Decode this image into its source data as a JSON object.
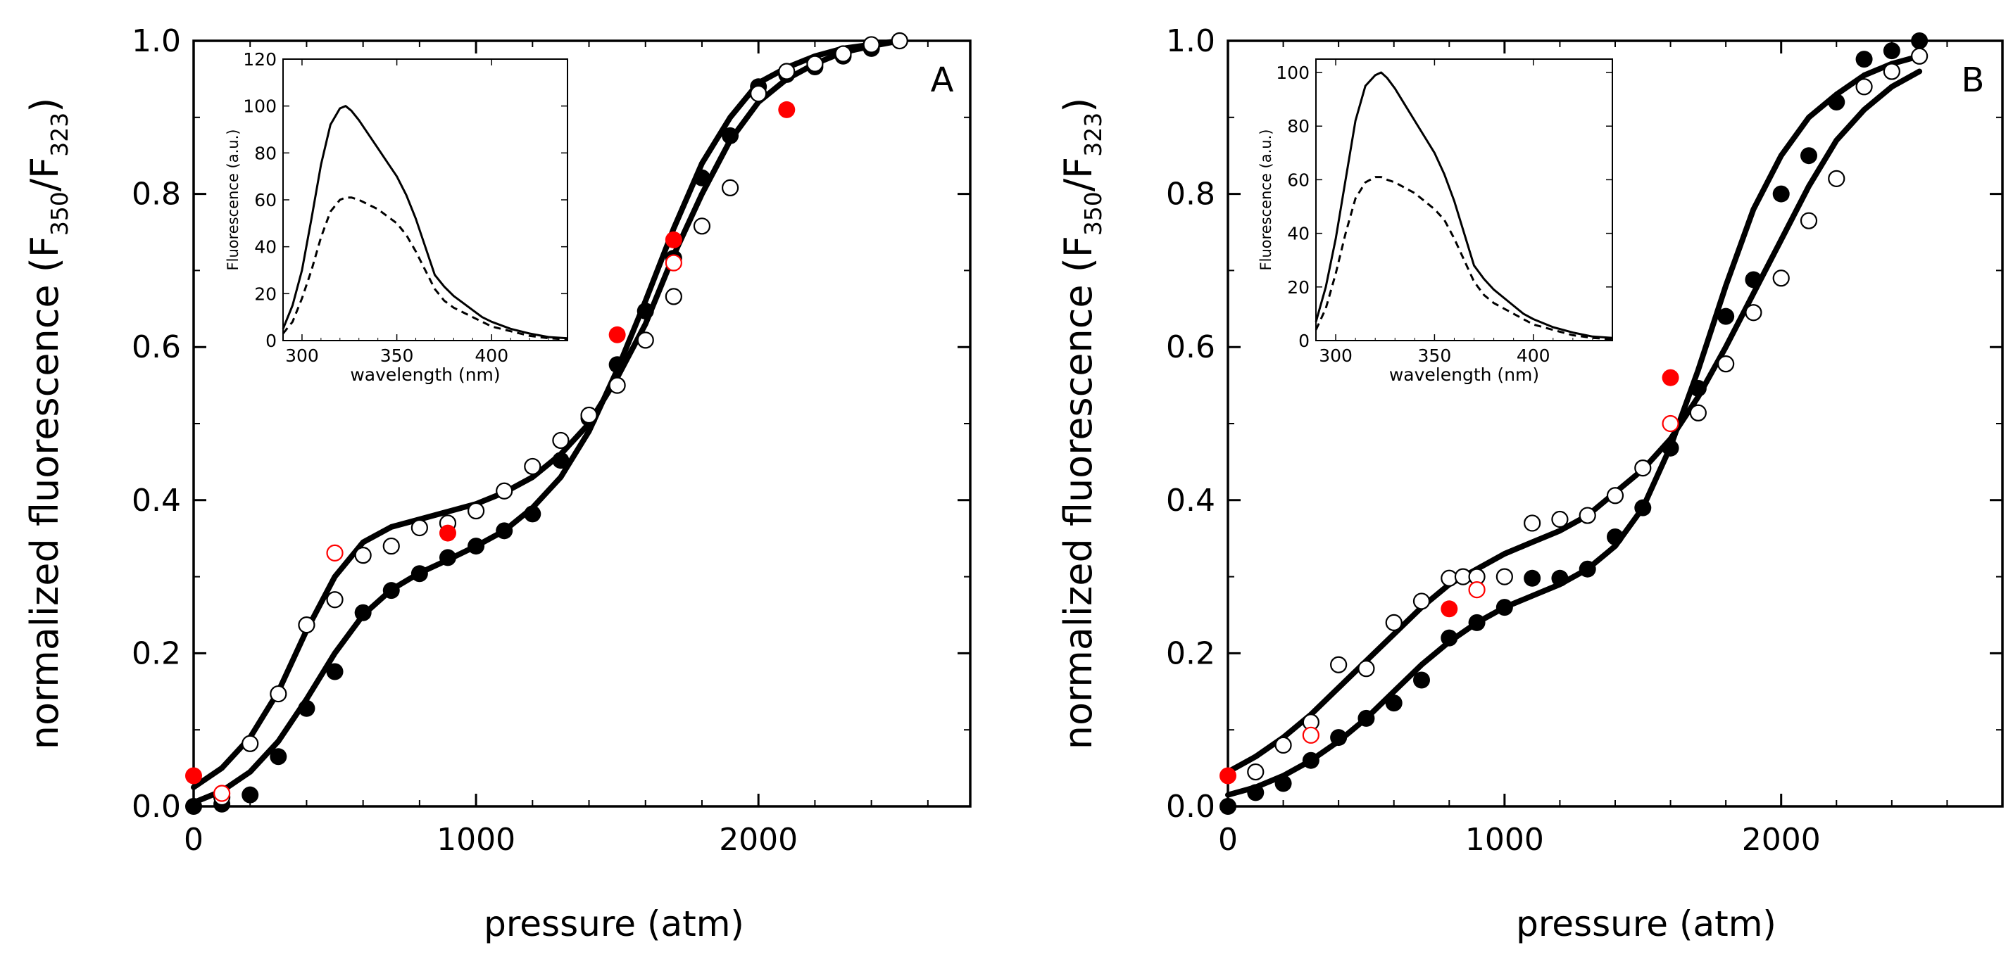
{
  "chart_data": [
    {
      "type": "scatter",
      "panel": "A",
      "xlabel": "pressure (atm)",
      "ylabel": {
        "main": "normalized fluorescence (F",
        "sub1": "350",
        "mid": "/F",
        "sub2": "323",
        "end": ")"
      },
      "xlim": [
        0,
        2750
      ],
      "ylim": [
        0,
        1.0
      ],
      "xticks": [
        0,
        1000,
        2000
      ],
      "xticklabels": [
        "0",
        "1000",
        "2000"
      ],
      "yticks": [
        0,
        0.2,
        0.4,
        0.6,
        0.8,
        1.0
      ],
      "yticklabels": [
        "0.0",
        "0.2",
        "0.4",
        "0.6",
        "0.8",
        "1.0"
      ],
      "series": [
        {
          "name": "filled black",
          "style": "filled",
          "color": "#000000",
          "x": [
            0,
            100,
            200,
            300,
            400,
            500,
            600,
            700,
            800,
            900,
            1000,
            1100,
            1200,
            1300,
            1400,
            1500,
            1600,
            1700,
            1800,
            1900,
            2000,
            2100,
            2200,
            2300,
            2400,
            2500
          ],
          "y": [
            0.0,
            0.003,
            0.015,
            0.065,
            0.128,
            0.176,
            0.253,
            0.282,
            0.304,
            0.325,
            0.34,
            0.36,
            0.382,
            0.452,
            0.507,
            0.577,
            0.647,
            0.716,
            0.821,
            0.876,
            0.94,
            0.956,
            0.966,
            0.98,
            0.99,
            1.0
          ]
        },
        {
          "name": "open black",
          "style": "open",
          "color": "#000000",
          "x": [
            100,
            200,
            300,
            400,
            500,
            600,
            700,
            800,
            900,
            1000,
            1100,
            1200,
            1300,
            1400,
            1500,
            1600,
            1700,
            1800,
            1900,
            2000,
            2100,
            2200,
            2300,
            2400,
            2500
          ],
          "y": [
            0.012,
            0.082,
            0.147,
            0.237,
            0.27,
            0.328,
            0.34,
            0.364,
            0.37,
            0.386,
            0.412,
            0.444,
            0.478,
            0.511,
            0.55,
            0.609,
            0.666,
            0.758,
            0.808,
            0.931,
            0.96,
            0.97,
            0.983,
            0.995,
            1.0
          ]
        },
        {
          "name": "filled red",
          "style": "filled",
          "color": "#ff0000",
          "x": [
            0,
            900,
            1500,
            1700,
            2100
          ],
          "y": [
            0.04,
            0.357,
            0.616,
            0.74,
            0.91
          ]
        },
        {
          "name": "open red",
          "style": "open",
          "color": "#ff0000",
          "x": [
            100,
            500,
            1700
          ],
          "y": [
            0.017,
            0.331,
            0.71
          ]
        },
        {
          "name": "fit filled",
          "style": "line",
          "color": "#000000",
          "x": [
            0,
            100,
            200,
            300,
            400,
            500,
            600,
            700,
            800,
            900,
            1000,
            1100,
            1200,
            1300,
            1400,
            1500,
            1600,
            1700,
            1800,
            1900,
            2000,
            2100,
            2200,
            2300,
            2400,
            2500
          ],
          "y": [
            0.005,
            0.02,
            0.045,
            0.085,
            0.14,
            0.2,
            0.25,
            0.283,
            0.305,
            0.322,
            0.34,
            0.36,
            0.39,
            0.43,
            0.49,
            0.57,
            0.66,
            0.755,
            0.84,
            0.9,
            0.945,
            0.965,
            0.98,
            0.99,
            0.995,
            1.0
          ]
        },
        {
          "name": "fit open",
          "style": "line",
          "color": "#000000",
          "x": [
            0,
            100,
            200,
            300,
            400,
            500,
            600,
            700,
            800,
            900,
            1000,
            1100,
            1200,
            1300,
            1400,
            1500,
            1600,
            1700,
            1800,
            1900,
            2000,
            2100,
            2200,
            2300,
            2400,
            2500
          ],
          "y": [
            0.025,
            0.05,
            0.09,
            0.15,
            0.23,
            0.3,
            0.345,
            0.365,
            0.375,
            0.385,
            0.395,
            0.41,
            0.43,
            0.46,
            0.5,
            0.56,
            0.63,
            0.72,
            0.8,
            0.87,
            0.92,
            0.95,
            0.97,
            0.985,
            0.993,
            1.0
          ]
        }
      ],
      "inset": {
        "xlabel": "wavelength (nm)",
        "ylabel": "Fluorescence (a.u.)",
        "xlim": [
          290,
          440
        ],
        "ylim": [
          0,
          120
        ],
        "xticks": [
          300,
          350,
          400
        ],
        "xticklabels": [
          "300",
          "350",
          "400"
        ],
        "yticks": [
          0,
          20,
          40,
          60,
          80,
          100,
          120
        ],
        "yticklabels": [
          "0",
          "20",
          "40",
          "60",
          "80",
          "100",
          "120"
        ],
        "series": [
          {
            "name": "solid",
            "style": "solid",
            "x": [
              290,
              295,
              300,
              305,
              310,
              315,
              320,
              323,
              326,
              330,
              335,
              340,
              345,
              350,
              355,
              360,
              365,
              370,
              375,
              380,
              385,
              390,
              395,
              400,
              410,
              420,
              430,
              440
            ],
            "y": [
              5,
              15,
              30,
              52,
              75,
              92,
              99,
              100,
              98,
              94,
              88,
              82,
              76,
              70,
              62,
              52,
              40,
              28,
              23,
              19,
              16,
              13,
              10,
              8,
              5,
              3,
              1.5,
              1
            ]
          },
          {
            "name": "dashed",
            "style": "dashed",
            "x": [
              290,
              295,
              300,
              305,
              310,
              315,
              320,
              323,
              326,
              330,
              335,
              340,
              345,
              350,
              355,
              360,
              365,
              370,
              375,
              380,
              385,
              390,
              395,
              400,
              410,
              420,
              430,
              440
            ],
            "y": [
              3,
              8,
              18,
              30,
              44,
              55,
              60,
              61,
              61,
              60,
              58,
              56,
              53,
              50,
              45,
              38,
              30,
              22,
              17,
              14,
              12,
              10,
              8,
              6,
              4,
              2,
              1,
              0.5
            ]
          }
        ]
      }
    },
    {
      "type": "scatter",
      "panel": "B",
      "xlabel": "pressure (atm)",
      "ylabel": {
        "main": "normalized fluorescence (F",
        "sub1": "350",
        "mid": "/F",
        "sub2": "323",
        "end": ")"
      },
      "xlim": [
        0,
        2800
      ],
      "ylim": [
        0,
        1.0
      ],
      "xticks": [
        0,
        1000,
        2000
      ],
      "xticklabels": [
        "0",
        "1000",
        "2000"
      ],
      "yticks": [
        0,
        0.2,
        0.4,
        0.6,
        0.8,
        1.0
      ],
      "yticklabels": [
        "0.0",
        "0.2",
        "0.4",
        "0.6",
        "0.8",
        "1.0"
      ],
      "series": [
        {
          "name": "filled black",
          "style": "filled",
          "color": "#000000",
          "x": [
            0,
            100,
            200,
            300,
            400,
            500,
            600,
            700,
            800,
            900,
            1000,
            1100,
            1200,
            1300,
            1400,
            1500,
            1600,
            1700,
            1800,
            1900,
            2000,
            2100,
            2200,
            2300,
            2400,
            2500
          ],
          "y": [
            0.0,
            0.018,
            0.03,
            0.06,
            0.09,
            0.115,
            0.135,
            0.165,
            0.22,
            0.24,
            0.26,
            0.298,
            0.298,
            0.31,
            0.352,
            0.39,
            0.468,
            0.546,
            0.64,
            0.688,
            0.8,
            0.85,
            0.92,
            0.976,
            0.987,
            1.0
          ]
        },
        {
          "name": "open black",
          "style": "open",
          "color": "#000000",
          "x": [
            100,
            200,
            300,
            400,
            500,
            600,
            700,
            800,
            850,
            900,
            1000,
            1100,
            1200,
            1300,
            1400,
            1500,
            1700,
            1800,
            1900,
            2000,
            2100,
            2200,
            2300,
            2400,
            2500
          ],
          "y": [
            0.045,
            0.08,
            0.11,
            0.185,
            0.18,
            0.24,
            0.268,
            0.298,
            0.3,
            0.3,
            0.3,
            0.37,
            0.375,
            0.38,
            0.406,
            0.442,
            0.514,
            0.578,
            0.645,
            0.69,
            0.765,
            0.82,
            0.94,
            0.96,
            0.98
          ]
        },
        {
          "name": "filled red",
          "style": "filled",
          "color": "#ff0000",
          "x": [
            0,
            800,
            1600
          ],
          "y": [
            0.04,
            0.258,
            0.56
          ]
        },
        {
          "name": "open red",
          "style": "open",
          "color": "#ff0000",
          "x": [
            300,
            900,
            1600
          ],
          "y": [
            0.093,
            0.283,
            0.5
          ]
        },
        {
          "name": "fit filled",
          "style": "line",
          "color": "#000000",
          "x": [
            0,
            100,
            200,
            300,
            400,
            500,
            600,
            700,
            800,
            900,
            1000,
            1100,
            1200,
            1300,
            1400,
            1500,
            1600,
            1700,
            1800,
            1900,
            2000,
            2100,
            2200,
            2300,
            2400,
            2500
          ],
          "y": [
            0.015,
            0.025,
            0.04,
            0.06,
            0.085,
            0.115,
            0.15,
            0.185,
            0.215,
            0.24,
            0.26,
            0.275,
            0.29,
            0.31,
            0.34,
            0.39,
            0.47,
            0.57,
            0.68,
            0.78,
            0.85,
            0.9,
            0.93,
            0.955,
            0.97,
            0.98
          ]
        },
        {
          "name": "fit open",
          "style": "line",
          "color": "#000000",
          "x": [
            0,
            100,
            200,
            300,
            400,
            500,
            600,
            700,
            800,
            900,
            1000,
            1100,
            1200,
            1300,
            1400,
            1500,
            1600,
            1700,
            1800,
            1900,
            2000,
            2100,
            2200,
            2300,
            2400,
            2500
          ],
          "y": [
            0.045,
            0.065,
            0.09,
            0.12,
            0.155,
            0.19,
            0.225,
            0.26,
            0.29,
            0.31,
            0.33,
            0.345,
            0.36,
            0.38,
            0.41,
            0.44,
            0.48,
            0.535,
            0.6,
            0.67,
            0.74,
            0.81,
            0.87,
            0.91,
            0.94,
            0.96
          ]
        }
      ],
      "inset": {
        "xlabel": "wavelength (nm)",
        "ylabel": "Fluorescence (a.u.)",
        "xlim": [
          290,
          440
        ],
        "ylim": [
          0,
          105
        ],
        "xticks": [
          300,
          350,
          400
        ],
        "xticklabels": [
          "300",
          "350",
          "400"
        ],
        "yticks": [
          0,
          20,
          40,
          60,
          80,
          100
        ],
        "yticklabels": [
          "0",
          "20",
          "40",
          "60",
          "80",
          "100"
        ],
        "series": [
          {
            "name": "solid",
            "style": "solid",
            "x": [
              290,
              295,
              300,
              305,
              310,
              315,
              320,
              323,
              326,
              330,
              335,
              340,
              345,
              350,
              355,
              360,
              365,
              370,
              375,
              380,
              385,
              390,
              395,
              400,
              410,
              420,
              430,
              440
            ],
            "y": [
              7,
              20,
              38,
              60,
              82,
              95,
              99,
              100,
              98,
              94,
              88,
              82,
              76,
              70,
              62,
              52,
              40,
              28,
              23,
              19,
              16,
              13,
              10,
              8,
              5,
              3,
              1.5,
              1
            ]
          },
          {
            "name": "dashed",
            "style": "dashed",
            "x": [
              290,
              295,
              300,
              305,
              310,
              315,
              320,
              323,
              326,
              330,
              335,
              340,
              345,
              350,
              355,
              360,
              365,
              370,
              375,
              380,
              385,
              390,
              395,
              400,
              410,
              420,
              430,
              440
            ],
            "y": [
              4,
              12,
              25,
              40,
              53,
              59,
              61,
              61,
              60,
              59,
              57,
              55,
              52,
              49,
              45,
              38,
              30,
              22,
              17,
              14,
              12,
              10,
              8,
              6,
              4,
              2,
              1,
              0.5
            ]
          }
        ]
      }
    }
  ]
}
